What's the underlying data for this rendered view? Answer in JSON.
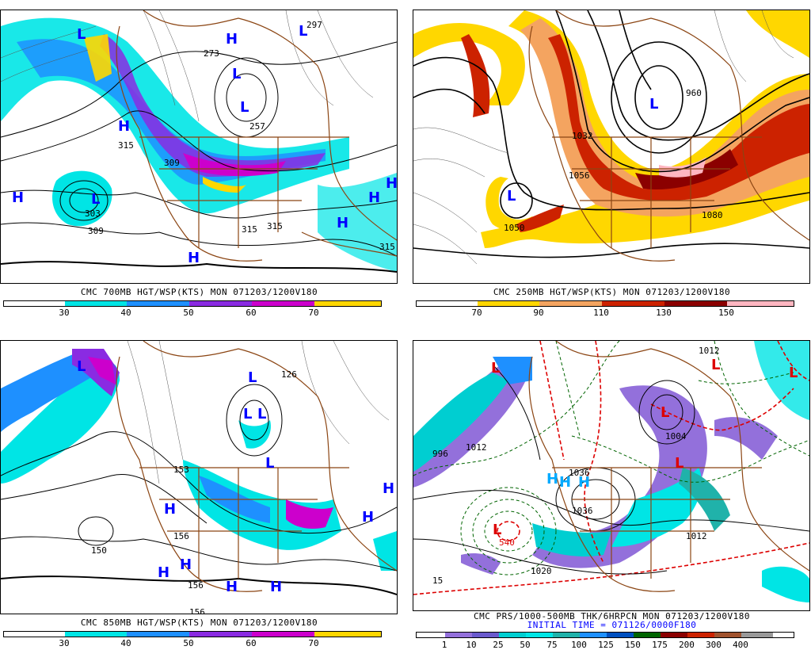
{
  "panels": [
    {
      "id": "p700",
      "caption": "CMC 700MB HGT/WSP(KTS) MON 071203/1200V180",
      "colorbar": {
        "labels": [
          "30",
          "40",
          "50",
          "60",
          "70"
        ],
        "colors": [
          "#ffffff",
          "#00e5e5",
          "#1e90ff",
          "#8a2be2",
          "#cc00cc",
          "#ffd700"
        ]
      },
      "highs_lows": [
        {
          "t": "L",
          "c": "#0000ff"
        },
        {
          "t": "H",
          "c": "#0000ff"
        },
        {
          "t": "L",
          "c": "#0000ff"
        },
        {
          "t": "H",
          "c": "#0000ff"
        },
        {
          "t": "L",
          "c": "#0000ff"
        },
        {
          "t": "L",
          "c": "#0000ff"
        },
        {
          "t": "H",
          "c": "#0000ff"
        },
        {
          "t": "H",
          "c": "#0000ff"
        },
        {
          "t": "H",
          "c": "#0000ff"
        },
        {
          "t": "H",
          "c": "#0000ff"
        },
        {
          "t": "L",
          "c": "#0000ff"
        },
        {
          "t": "H",
          "c": "#0000ff"
        }
      ],
      "values": [
        "315",
        "303",
        "309",
        "309",
        "315",
        "315",
        "315",
        "273",
        "257",
        "297"
      ]
    },
    {
      "id": "p250",
      "caption": "CMC 250MB HGT/WSP(KTS) MON 071203/1200V180",
      "colorbar": {
        "labels": [
          "70",
          "90",
          "110",
          "130",
          "150"
        ],
        "colors": [
          "#ffffff",
          "#ffd700",
          "#f4a460",
          "#cc2200",
          "#8b0000",
          "#ffb6c1"
        ]
      },
      "highs_lows": [
        {
          "t": "L",
          "c": "#0000ff"
        },
        {
          "t": "L",
          "c": "#0000ff"
        }
      ],
      "values": [
        "1032",
        "1056",
        "1080",
        "1050",
        "960"
      ]
    },
    {
      "id": "p850",
      "caption": "CMC 850MB HGT/WSP(KTS) MON 071203/1200V180",
      "colorbar": {
        "labels": [
          "30",
          "40",
          "50",
          "60",
          "70"
        ],
        "colors": [
          "#ffffff",
          "#00e5e5",
          "#1e90ff",
          "#8a2be2",
          "#cc00cc",
          "#ffd700"
        ]
      },
      "highs_lows": [
        {
          "t": "L",
          "c": "#0000ff"
        },
        {
          "t": "L",
          "c": "#0000ff"
        },
        {
          "t": "L",
          "c": "#0000ff"
        },
        {
          "t": "L",
          "c": "#0000ff"
        },
        {
          "t": "H",
          "c": "#0000ff"
        },
        {
          "t": "H",
          "c": "#0000ff"
        },
        {
          "t": "H",
          "c": "#0000ff"
        },
        {
          "t": "H",
          "c": "#0000ff"
        },
        {
          "t": "H",
          "c": "#0000ff"
        },
        {
          "t": "H",
          "c": "#0000ff"
        },
        {
          "t": "H",
          "c": "#0000ff"
        },
        {
          "t": "L",
          "c": "#0000ff"
        }
      ],
      "values": [
        "150",
        "156",
        "156",
        "156",
        "153",
        "126"
      ]
    },
    {
      "id": "pprs",
      "caption": "CMC PRS/1000-500MB THK/6HRPCN MON 071203/1200V180",
      "caption2": "INITIAL TIME = 071126/0000F180",
      "colorbar": {
        "labels": [
          "1",
          "10",
          "25",
          "50",
          "75",
          "100",
          "125",
          "150",
          "175",
          "200",
          "300",
          "400"
        ],
        "colors": [
          "#ffffff",
          "#9370db",
          "#6a5acd",
          "#00ced1",
          "#00e5e5",
          "#20b2aa",
          "#1e90ff",
          "#0050c0",
          "#006400",
          "#8b0000",
          "#cc2200",
          "#a0522d",
          "#999999"
        ]
      },
      "highs_lows": [
        {
          "t": "L",
          "c": "#dd0000"
        },
        {
          "t": "L",
          "c": "#dd0000"
        },
        {
          "t": "H",
          "c": "#00aaff"
        },
        {
          "t": "H",
          "c": "#00aaff"
        },
        {
          "t": "H",
          "c": "#00aaff"
        },
        {
          "t": "L",
          "c": "#dd0000"
        },
        {
          "t": "L",
          "c": "#dd0000"
        },
        {
          "t": "L",
          "c": "#dd0000"
        },
        {
          "t": "L",
          "c": "#dd0000"
        }
      ],
      "values": [
        "1012",
        "996",
        "1036",
        "1020",
        "540",
        "1012",
        "1004",
        "1036",
        "15",
        "1012"
      ]
    }
  ]
}
